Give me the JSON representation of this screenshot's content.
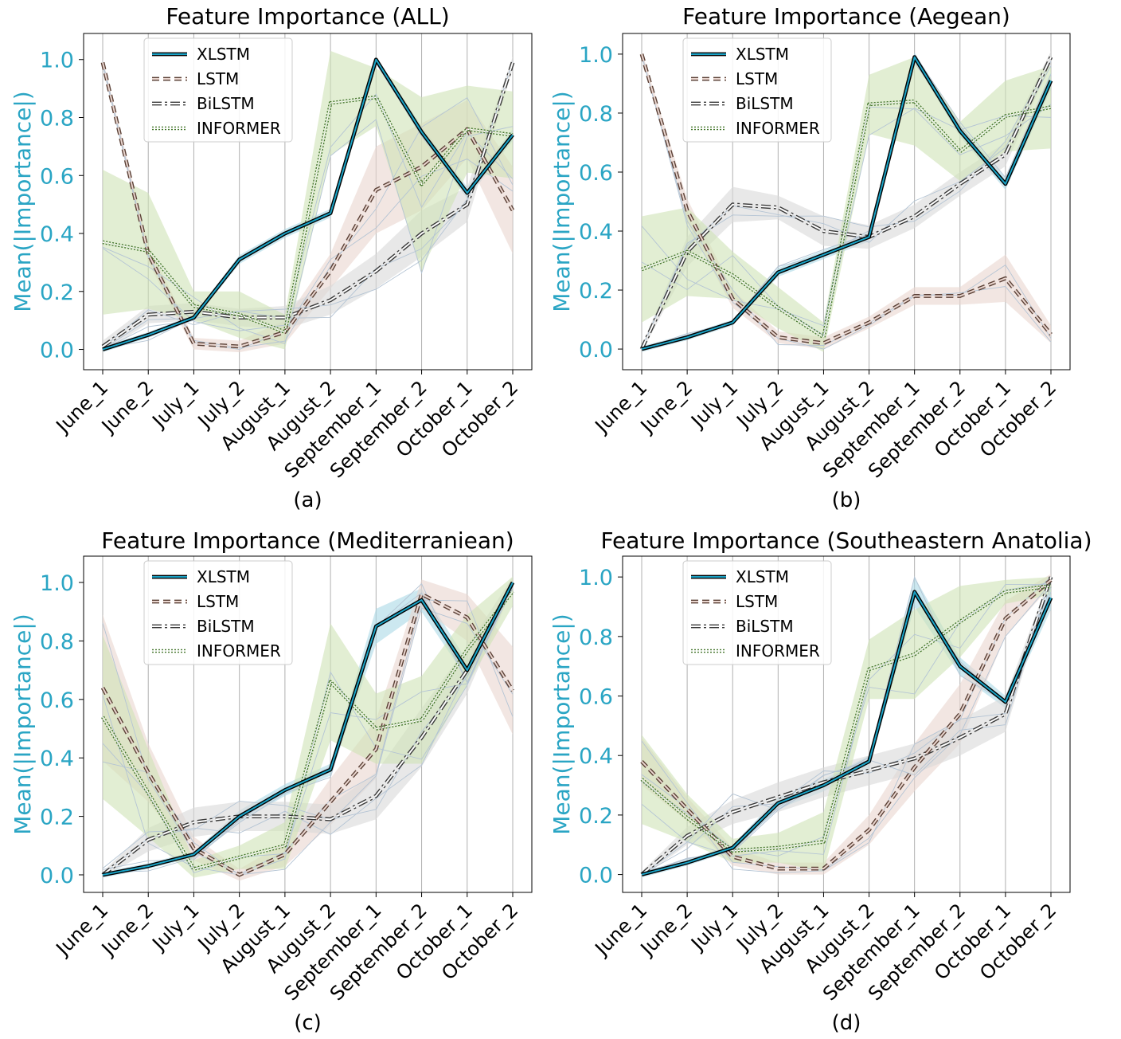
{
  "chart_data": [
    {
      "type": "line",
      "title": "Feature Importance (ALL)",
      "caption": "(a)",
      "ylabel": "Mean(|Importance|)",
      "xlabel": "",
      "ylim": [
        -0.07,
        1.09
      ],
      "yticks": [
        0.0,
        0.2,
        0.4,
        0.6,
        0.8,
        1.0
      ],
      "grid": "vertical",
      "legend": "top-left",
      "categories": [
        "June_1",
        "June_2",
        "July_1",
        "July_2",
        "August_1",
        "August_2",
        "September_1",
        "September_2",
        "October_1",
        "October_2"
      ],
      "series": [
        {
          "name": "XLSTM",
          "values": [
            0.0,
            0.05,
            0.11,
            0.31,
            0.4,
            0.47,
            1.0,
            0.75,
            0.54,
            0.74
          ],
          "band": [
            0.01,
            0.01,
            0.01,
            0.015,
            0.015,
            0.015,
            0.01,
            0.02,
            0.02,
            0.02
          ]
        },
        {
          "name": "LSTM",
          "values": [
            0.99,
            0.33,
            0.02,
            0.01,
            0.06,
            0.27,
            0.55,
            0.63,
            0.76,
            0.48
          ],
          "band": [
            0.01,
            0.03,
            0.02,
            0.02,
            0.04,
            0.06,
            0.15,
            0.15,
            0.1,
            0.15
          ]
        },
        {
          "name": "BiLSTM",
          "values": [
            0.01,
            0.12,
            0.13,
            0.11,
            0.11,
            0.17,
            0.27,
            0.4,
            0.5,
            0.99
          ],
          "band": [
            0.02,
            0.03,
            0.03,
            0.03,
            0.04,
            0.05,
            0.06,
            0.08,
            0.06,
            0.02
          ]
        },
        {
          "name": "INFORMER",
          "values": [
            0.37,
            0.34,
            0.15,
            0.12,
            0.06,
            0.85,
            0.87,
            0.57,
            0.76,
            0.74
          ],
          "band": [
            0.25,
            0.2,
            0.05,
            0.08,
            0.06,
            0.18,
            0.1,
            0.3,
            0.15,
            0.15
          ]
        }
      ]
    },
    {
      "type": "line",
      "title": "Feature Importance (Aegean)",
      "caption": "(b)",
      "ylabel": "Mean(|Importance|)",
      "xlabel": "",
      "ylim": [
        -0.07,
        1.07
      ],
      "yticks": [
        0.0,
        0.2,
        0.4,
        0.6,
        0.8,
        1.0
      ],
      "grid": "vertical",
      "legend": "top-left",
      "categories": [
        "June_1",
        "June_2",
        "July_1",
        "July_2",
        "August_1",
        "August_2",
        "September_1",
        "September_2",
        "October_1",
        "October_2"
      ],
      "series": [
        {
          "name": "XLSTM",
          "values": [
            0.0,
            0.04,
            0.09,
            0.26,
            0.32,
            0.38,
            0.99,
            0.74,
            0.56,
            0.91
          ],
          "band": [
            0.01,
            0.01,
            0.01,
            0.015,
            0.015,
            0.015,
            0.015,
            0.02,
            0.02,
            0.03
          ]
        },
        {
          "name": "LSTM",
          "values": [
            1.0,
            0.47,
            0.17,
            0.04,
            0.02,
            0.09,
            0.18,
            0.18,
            0.24,
            0.05
          ],
          "band": [
            0.01,
            0.04,
            0.03,
            0.02,
            0.02,
            0.02,
            0.03,
            0.03,
            0.08,
            0.03
          ]
        },
        {
          "name": "BiLSTM",
          "values": [
            0.0,
            0.33,
            0.49,
            0.48,
            0.4,
            0.38,
            0.45,
            0.56,
            0.66,
            0.99
          ],
          "band": [
            0.01,
            0.05,
            0.06,
            0.04,
            0.05,
            0.04,
            0.04,
            0.04,
            0.04,
            0.02
          ]
        },
        {
          "name": "INFORMER",
          "values": [
            0.27,
            0.33,
            0.25,
            0.14,
            0.04,
            0.83,
            0.84,
            0.67,
            0.79,
            0.82
          ],
          "band": [
            0.18,
            0.15,
            0.08,
            0.07,
            0.05,
            0.1,
            0.15,
            0.1,
            0.12,
            0.14
          ]
        }
      ]
    },
    {
      "type": "line",
      "title": "Feature Importance (Mediterraniean)",
      "caption": "(c)",
      "ylabel": "Mean(|Importance|)",
      "xlabel": "",
      "ylim": [
        -0.06,
        1.09
      ],
      "yticks": [
        0.0,
        0.2,
        0.4,
        0.6,
        0.8,
        1.0
      ],
      "grid": "vertical",
      "legend": "top-left",
      "categories": [
        "June_1",
        "June_2",
        "July_1",
        "July_2",
        "August_1",
        "August_2",
        "September_1",
        "September_2",
        "October_1",
        "October_2"
      ],
      "series": [
        {
          "name": "XLSTM",
          "values": [
            0.0,
            0.03,
            0.07,
            0.2,
            0.29,
            0.36,
            0.85,
            0.94,
            0.7,
            1.0
          ],
          "band": [
            0.01,
            0.01,
            0.01,
            0.02,
            0.02,
            0.02,
            0.06,
            0.04,
            0.03,
            0.01
          ]
        },
        {
          "name": "LSTM",
          "values": [
            0.64,
            0.35,
            0.09,
            0.0,
            0.07,
            0.25,
            0.43,
            0.96,
            0.88,
            0.63
          ],
          "band": [
            0.25,
            0.1,
            0.04,
            0.02,
            0.04,
            0.08,
            0.1,
            0.05,
            0.08,
            0.15
          ]
        },
        {
          "name": "BiLSTM",
          "values": [
            0.0,
            0.12,
            0.18,
            0.2,
            0.2,
            0.19,
            0.27,
            0.47,
            0.7,
            1.0
          ],
          "band": [
            0.01,
            0.04,
            0.05,
            0.05,
            0.05,
            0.05,
            0.08,
            0.1,
            0.08,
            0.02
          ]
        },
        {
          "name": "INFORMER",
          "values": [
            0.54,
            0.28,
            0.02,
            0.06,
            0.1,
            0.66,
            0.5,
            0.53,
            0.77,
            0.97
          ],
          "band": [
            0.28,
            0.15,
            0.03,
            0.04,
            0.08,
            0.2,
            0.12,
            0.15,
            0.12,
            0.05
          ]
        }
      ]
    },
    {
      "type": "line",
      "title": "Feature Importance (Southeastern Anatolia)",
      "caption": "(d)",
      "ylabel": "Mean(|Importance|)",
      "xlabel": "",
      "ylim": [
        -0.06,
        1.07
      ],
      "yticks": [
        0.0,
        0.2,
        0.4,
        0.6,
        0.8,
        1.0
      ],
      "grid": "vertical",
      "legend": "top-left",
      "categories": [
        "June_1",
        "June_2",
        "July_1",
        "July_2",
        "August_1",
        "August_2",
        "September_1",
        "September_2",
        "October_1",
        "October_2"
      ],
      "series": [
        {
          "name": "XLSTM",
          "values": [
            0.0,
            0.04,
            0.09,
            0.24,
            0.3,
            0.38,
            0.95,
            0.7,
            0.58,
            0.93
          ],
          "band": [
            0.01,
            0.01,
            0.01,
            0.02,
            0.02,
            0.02,
            0.05,
            0.03,
            0.02,
            0.04
          ]
        },
        {
          "name": "LSTM",
          "values": [
            0.38,
            0.22,
            0.06,
            0.02,
            0.02,
            0.15,
            0.36,
            0.54,
            0.86,
            0.99
          ],
          "band": [
            0.08,
            0.04,
            0.03,
            0.02,
            0.02,
            0.05,
            0.08,
            0.1,
            0.06,
            0.02
          ]
        },
        {
          "name": "BiLSTM",
          "values": [
            0.0,
            0.13,
            0.21,
            0.26,
            0.31,
            0.35,
            0.39,
            0.46,
            0.54,
            1.0
          ],
          "band": [
            0.01,
            0.03,
            0.04,
            0.05,
            0.05,
            0.05,
            0.05,
            0.06,
            0.06,
            0.01
          ]
        },
        {
          "name": "INFORMER",
          "values": [
            0.32,
            0.19,
            0.08,
            0.09,
            0.11,
            0.69,
            0.74,
            0.85,
            0.95,
            0.97
          ],
          "band": [
            0.15,
            0.08,
            0.04,
            0.05,
            0.1,
            0.1,
            0.15,
            0.12,
            0.04,
            0.03
          ]
        }
      ]
    }
  ],
  "colors": {
    "axis_label": "#2aa5c4",
    "xlstm": "#1aa3c6",
    "xlstm_band": "#aad8e6",
    "lstm": "#5a4036",
    "lstm_band": "#ead6cf",
    "bilstm": "#3a3a3a",
    "bilstm_band": "#d9d9d9",
    "informer": "#43752a",
    "informer_band": "#cfe3b5",
    "thin_lines": "#b4c4d4",
    "grid": "#b0b0b0"
  }
}
